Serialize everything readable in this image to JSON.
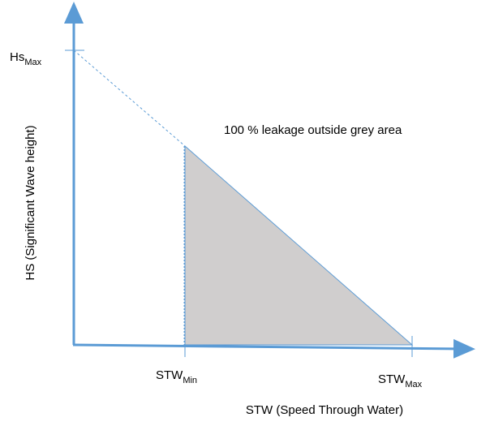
{
  "axes": {
    "x_label": "STW (Speed Through Water)",
    "y_label": "HS (Significant Wave height)"
  },
  "annotation": "100 % leakage outside grey area",
  "labels": {
    "hs_max": {
      "main": "Hs",
      "sub": "Max"
    },
    "stw_min": {
      "main": "STW",
      "sub": "Min"
    },
    "stw_max": {
      "main": "STW",
      "sub": "Max"
    }
  }
}
